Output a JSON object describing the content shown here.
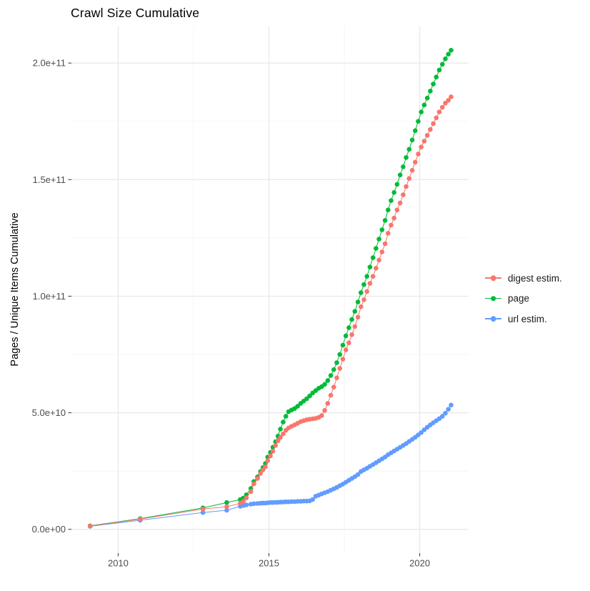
{
  "chart_data": {
    "type": "scatter",
    "title": "Crawl Size Cumulative",
    "xlabel": "",
    "ylabel": "Pages / Unique Items Cumulative",
    "legend_position": "right",
    "grid": "major+minor",
    "background": "#ffffff",
    "grid_major_color": "#e8e8e8",
    "grid_minor_color": "#f2f2f2",
    "tick_color": "#333333",
    "axis_text_color": "#4d4d4d",
    "x_range": [
      2008.45,
      2021.62
    ],
    "y_range": [
      -1.02,
      21.57
    ],
    "y_unit_multiplier": 10000000000,
    "x_ticks": [
      {
        "value": 2010,
        "label": "2010"
      },
      {
        "value": 2015,
        "label": "2015"
      },
      {
        "value": 2020,
        "label": "2020"
      }
    ],
    "y_ticks": [
      {
        "value": 0,
        "label": "0.0e+00"
      },
      {
        "value": 5,
        "label": "5.0e+10"
      },
      {
        "value": 10,
        "label": "1.0e+11"
      },
      {
        "value": 15,
        "label": "1.5e+11"
      },
      {
        "value": 20,
        "label": "2.0e+11"
      }
    ],
    "x_minor": [
      2012.5,
      2017.5
    ],
    "y_minor": [
      2.5,
      7.5,
      12.5,
      17.5
    ],
    "x": [
      2009.07,
      2010.73,
      2012.81,
      2013.6,
      2014.05,
      2014.15,
      2014.25,
      2014.4,
      2014.5,
      2014.62,
      2014.72,
      2014.8,
      2014.88,
      2014.96,
      2015.05,
      2015.13,
      2015.22,
      2015.3,
      2015.38,
      2015.47,
      2015.56,
      2015.65,
      2015.75,
      2015.85,
      2015.95,
      2016.05,
      2016.15,
      2016.25,
      2016.35,
      2016.45,
      2016.55,
      2016.65,
      2016.75,
      2016.85,
      2016.95,
      2017.05,
      2017.15,
      2017.25,
      2017.35,
      2017.45,
      2017.55,
      2017.65,
      2017.75,
      2017.85,
      2017.95,
      2018.05,
      2018.15,
      2018.25,
      2018.35,
      2018.45,
      2018.55,
      2018.65,
      2018.75,
      2018.85,
      2018.95,
      2019.05,
      2019.15,
      2019.25,
      2019.35,
      2019.45,
      2019.55,
      2019.65,
      2019.75,
      2019.85,
      2019.95,
      2020.05,
      2020.15,
      2020.25,
      2020.35,
      2020.45,
      2020.55,
      2020.65,
      2020.75,
      2020.85,
      2020.95,
      2021.04
    ],
    "series": [
      {
        "name": "digest estim.",
        "color": "#F8766D",
        "values": [
          0.14,
          0.44,
          0.87,
          0.97,
          1.12,
          1.2,
          1.35,
          1.62,
          1.95,
          2.18,
          2.4,
          2.55,
          2.68,
          2.95,
          3.15,
          3.35,
          3.6,
          3.8,
          3.95,
          4.1,
          4.25,
          4.35,
          4.42,
          4.48,
          4.55,
          4.62,
          4.66,
          4.7,
          4.72,
          4.74,
          4.76,
          4.8,
          4.88,
          5.1,
          5.4,
          5.75,
          6.1,
          6.5,
          6.9,
          7.3,
          7.7,
          8.0,
          8.35,
          8.7,
          9.1,
          9.55,
          9.85,
          10.2,
          10.55,
          10.85,
          11.2,
          11.55,
          11.9,
          12.25,
          12.7,
          13.05,
          13.35,
          13.7,
          14.0,
          14.35,
          14.7,
          15.05,
          15.4,
          15.75,
          16.1,
          16.4,
          16.65,
          16.9,
          17.15,
          17.4,
          17.65,
          17.9,
          18.1,
          18.28,
          18.4,
          18.55
        ]
      },
      {
        "name": "page",
        "color": "#00BA38",
        "values": [
          0.15,
          0.46,
          0.92,
          1.15,
          1.28,
          1.34,
          1.48,
          1.75,
          2.05,
          2.25,
          2.48,
          2.65,
          2.82,
          3.1,
          3.3,
          3.52,
          3.76,
          4.0,
          4.3,
          4.6,
          4.85,
          5.05,
          5.12,
          5.18,
          5.28,
          5.4,
          5.5,
          5.6,
          5.72,
          5.85,
          5.95,
          6.05,
          6.12,
          6.22,
          6.38,
          6.6,
          6.85,
          7.15,
          7.5,
          7.9,
          8.3,
          8.65,
          9.0,
          9.35,
          9.75,
          10.15,
          10.5,
          10.85,
          11.25,
          11.65,
          12.05,
          12.45,
          12.85,
          13.25,
          13.7,
          14.1,
          14.45,
          14.8,
          15.2,
          15.55,
          15.95,
          16.3,
          16.7,
          17.1,
          17.5,
          17.9,
          18.2,
          18.5,
          18.8,
          19.1,
          19.4,
          19.7,
          19.95,
          20.18,
          20.38,
          20.55
        ]
      },
      {
        "name": "url estim.",
        "color": "#619CFF",
        "values": [
          0.13,
          0.39,
          0.72,
          0.82,
          0.99,
          1.02,
          1.05,
          1.08,
          1.1,
          1.11,
          1.12,
          1.13,
          1.13,
          1.14,
          1.15,
          1.15,
          1.16,
          1.16,
          1.17,
          1.17,
          1.18,
          1.18,
          1.19,
          1.19,
          1.2,
          1.2,
          1.21,
          1.21,
          1.22,
          1.28,
          1.42,
          1.47,
          1.52,
          1.57,
          1.62,
          1.68,
          1.74,
          1.8,
          1.87,
          1.94,
          2.02,
          2.1,
          2.18,
          2.26,
          2.35,
          2.48,
          2.55,
          2.62,
          2.7,
          2.78,
          2.86,
          2.94,
          3.02,
          3.1,
          3.2,
          3.28,
          3.36,
          3.44,
          3.52,
          3.6,
          3.68,
          3.77,
          3.86,
          3.95,
          4.05,
          4.15,
          4.27,
          4.38,
          4.48,
          4.57,
          4.66,
          4.75,
          4.85,
          4.98,
          5.15,
          5.33
        ]
      }
    ],
    "draw_order": [
      2,
      1,
      0
    ]
  }
}
